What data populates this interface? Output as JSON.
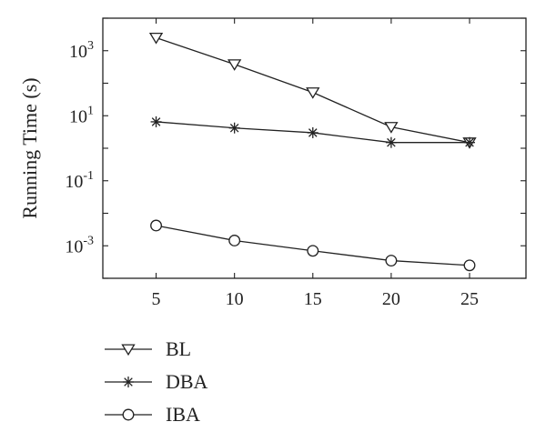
{
  "chart_data": {
    "type": "line",
    "title": "",
    "xlabel": "",
    "ylabel": "Running Time (s)",
    "yscale": "log",
    "x": [
      5,
      10,
      15,
      20,
      25
    ],
    "xticks": [
      5,
      10,
      15,
      20,
      25
    ],
    "xlim": [
      1.6,
      28.6
    ],
    "yticks": [
      {
        "base": "10",
        "exp": "3",
        "value": 1000
      },
      {
        "base": "10",
        "exp": "1",
        "value": 10
      },
      {
        "base": "10",
        "exp": "-1",
        "value": 0.1
      },
      {
        "base": "10",
        "exp": "-3",
        "value": 0.001
      }
    ],
    "ylim": [
      0.0001,
      10000
    ],
    "grid": false,
    "legend_position": "below",
    "series": [
      {
        "name": "BL",
        "marker": "triangle-down",
        "values": [
          2500,
          380,
          52,
          4.5,
          1.5
        ]
      },
      {
        "name": "DBA",
        "marker": "asterisk",
        "values": [
          6.5,
          4.2,
          3.0,
          1.5,
          1.5
        ]
      },
      {
        "name": "IBA",
        "marker": "circle",
        "values": [
          0.0042,
          0.00145,
          0.0007,
          0.00035,
          0.00025
        ]
      }
    ]
  }
}
